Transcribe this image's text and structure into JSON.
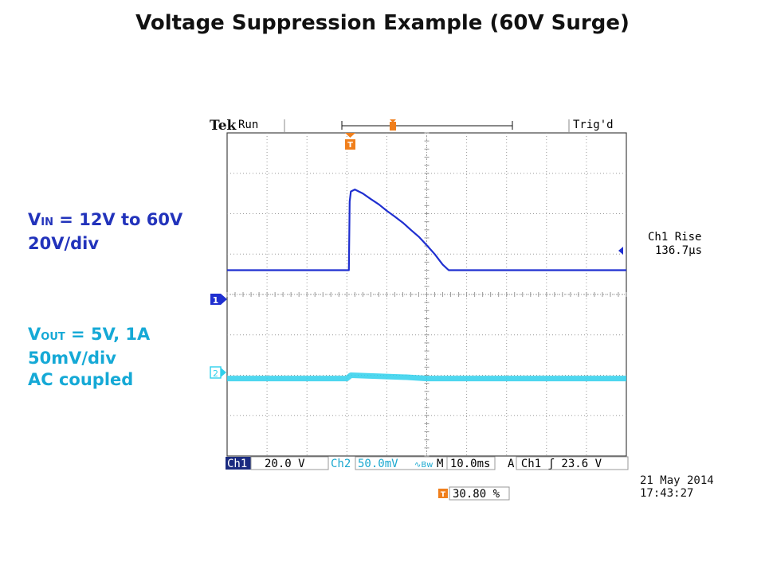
{
  "page": {
    "title": "Voltage Suppression Example (60V Surge)"
  },
  "labels": {
    "vin": {
      "symbol": "V",
      "sub": "IN",
      "text": " = 12V to 60V",
      "scale": "20V/div"
    },
    "vout": {
      "symbol": "V",
      "sub": "OUT",
      "text": " = 5V, 1A",
      "scale": "50mV/div",
      "coupling": "AC coupled"
    }
  },
  "scope": {
    "brand": "Tek",
    "run_state": "Run",
    "trigger_state": "Trig'd",
    "ch1_marker": "1",
    "ch2_marker": "2",
    "trigger_marker": "T",
    "measurement": {
      "name": "Ch1 Rise",
      "value": "136.7µs"
    },
    "bottom_bar": {
      "ch1_label": "Ch1",
      "ch1_scale": "20.0 V",
      "ch2_label": "Ch2",
      "ch2_scale": "50.0mV",
      "timebase": "M 10.0ms",
      "trigger": "A  Ch1  ʃ  23.6 V",
      "trigger_position": "30.80 %"
    },
    "date": "21 May 2014",
    "time": "17:43:27",
    "colors": {
      "ch1": "#1f2fd0",
      "ch2": "#2fd0ec",
      "trigger": "#f07f1c",
      "grid": "#9a9a9a"
    }
  },
  "chart_data": {
    "type": "line",
    "x_unit": "div",
    "y_unit": "div",
    "xlim": [
      0,
      10
    ],
    "ylim": [
      -4,
      4
    ],
    "series": [
      {
        "name": "Ch1",
        "x": [
          0,
          3.05,
          3.07,
          3.1,
          3.2,
          3.3,
          3.4,
          3.6,
          3.8,
          4.0,
          4.2,
          4.4,
          4.6,
          4.8,
          5.0,
          5.2,
          5.4,
          5.55,
          5.6,
          6.0,
          7.0,
          8.0,
          9.0,
          10.0
        ],
        "y": [
          0.6,
          0.6,
          2.3,
          2.55,
          2.6,
          2.55,
          2.5,
          2.36,
          2.23,
          2.07,
          1.93,
          1.78,
          1.6,
          1.43,
          1.22,
          1.0,
          0.74,
          0.6,
          0.6,
          0.6,
          0.6,
          0.6,
          0.6,
          0.6
        ]
      },
      {
        "name": "Ch2",
        "x": [
          0,
          3.0,
          3.1,
          4.5,
          5.0,
          6.0,
          10.0
        ],
        "y": [
          -2.08,
          -2.08,
          -2.0,
          -2.05,
          -2.08,
          -2.08,
          -2.08
        ]
      }
    ]
  }
}
